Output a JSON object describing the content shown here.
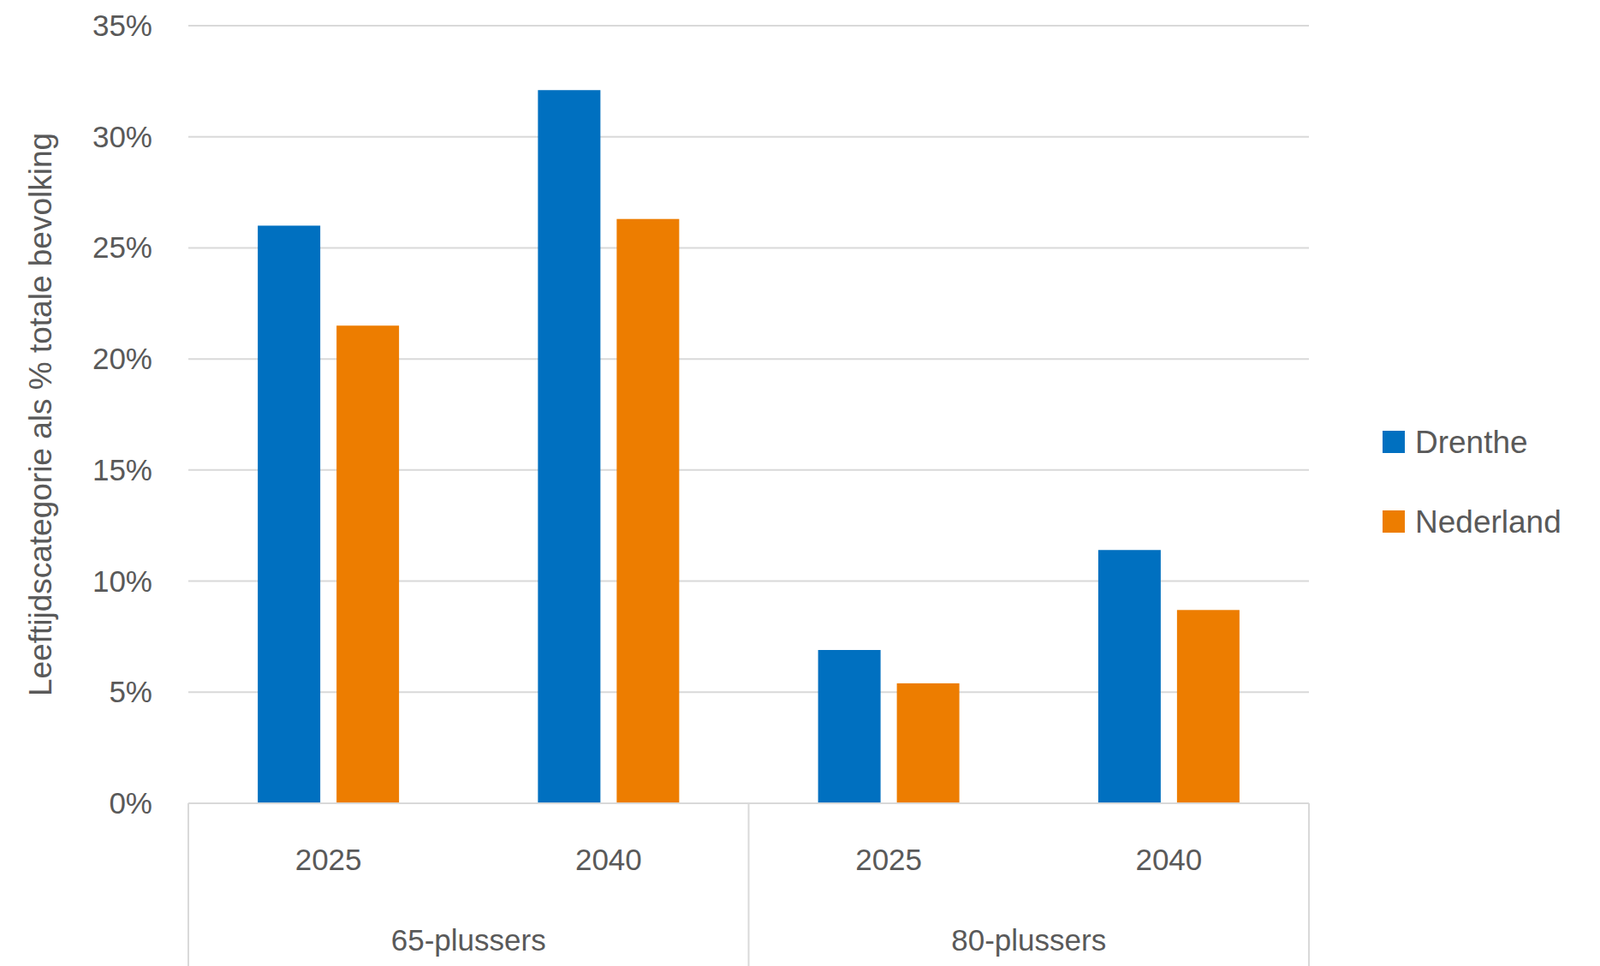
{
  "chart_data": {
    "type": "bar",
    "y_label": "Leeftijdscategorie als % totale bevolking",
    "categories": [
      "2025",
      "2040",
      "2025",
      "2040"
    ],
    "groups": [
      "65-plussers",
      "80-plussers"
    ],
    "series": [
      {
        "name": "Drenthe",
        "color": "#0070c0",
        "values": [
          26,
          32.1,
          6.9,
          11.4
        ]
      },
      {
        "name": "Nederland",
        "color": "#ed7d00",
        "values": [
          21.5,
          26.3,
          5.4,
          8.7
        ]
      }
    ],
    "ylim": [
      0,
      35
    ],
    "yticks": [
      {
        "value": 0,
        "label": "0%"
      },
      {
        "value": 5,
        "label": "5%"
      },
      {
        "value": 10,
        "label": "10%"
      },
      {
        "value": 15,
        "label": "15%"
      },
      {
        "value": 20,
        "label": "20%"
      },
      {
        "value": 25,
        "label": "25%"
      },
      {
        "value": 30,
        "label": "30%"
      },
      {
        "value": 35,
        "label": "35%"
      }
    ],
    "grid": true,
    "legend": "right"
  }
}
